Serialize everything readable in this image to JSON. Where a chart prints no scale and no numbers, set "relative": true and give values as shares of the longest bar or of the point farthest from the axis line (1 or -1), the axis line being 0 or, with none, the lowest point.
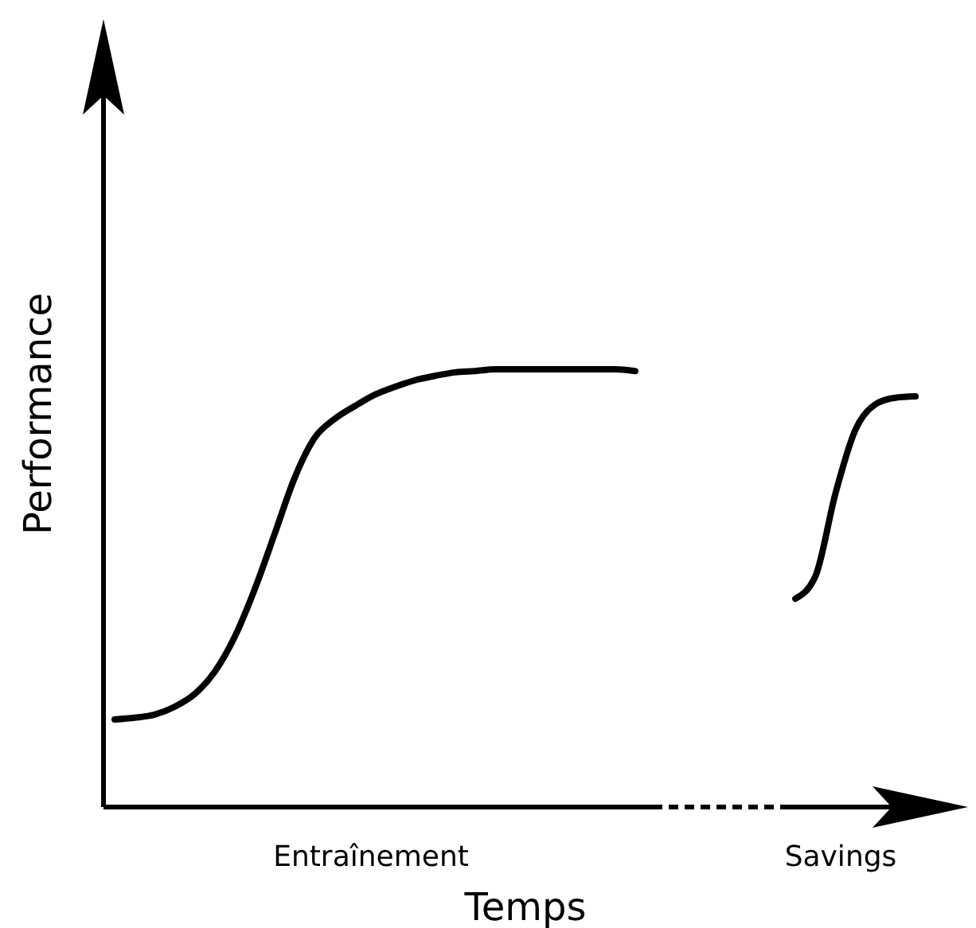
{
  "chart_data": {
    "type": "line",
    "relative": true,
    "xlabel": "Temps",
    "ylabel": "Performance",
    "tick_labels": false,
    "categories": [
      null,
      null,
      null,
      null,
      null,
      null,
      null,
      null,
      null,
      null,
      null,
      null,
      null,
      null,
      null,
      null,
      null,
      null,
      null,
      null,
      null,
      null,
      null,
      null,
      null,
      null,
      null,
      null,
      null,
      null,
      null,
      null,
      null,
      null,
      null,
      null,
      null,
      null,
      null,
      null,
      null
    ],
    "series": [
      {
        "color": "#000000",
        "values": [
          0.2,
          0.204,
          0.211,
          0.229,
          0.258,
          0.309,
          0.389,
          0.498,
          0.625,
          0.753,
          0.844,
          0.887,
          0.916,
          0.942,
          0.96,
          0.975,
          0.985,
          0.993,
          0.996,
          1,
          1,
          1,
          1,
          1,
          1,
          1,
          0.996,
          null,
          null,
          null,
          null,
          null,
          null,
          null,
          null,
          null,
          null,
          null,
          null,
          null,
          null
        ]
      },
      {
        "color": "#000000",
        "values": [
          null,
          null,
          null,
          null,
          null,
          null,
          null,
          null,
          null,
          null,
          null,
          null,
          null,
          null,
          null,
          null,
          null,
          null,
          null,
          null,
          null,
          null,
          null,
          null,
          null,
          null,
          null,
          null,
          null,
          null,
          null,
          null,
          null,
          null,
          0.476,
          0.527,
          0.716,
          0.862,
          0.92,
          0.935,
          0.938
        ]
      }
    ],
    "annotations": [
      "Entraînement",
      "Savings"
    ]
  }
}
